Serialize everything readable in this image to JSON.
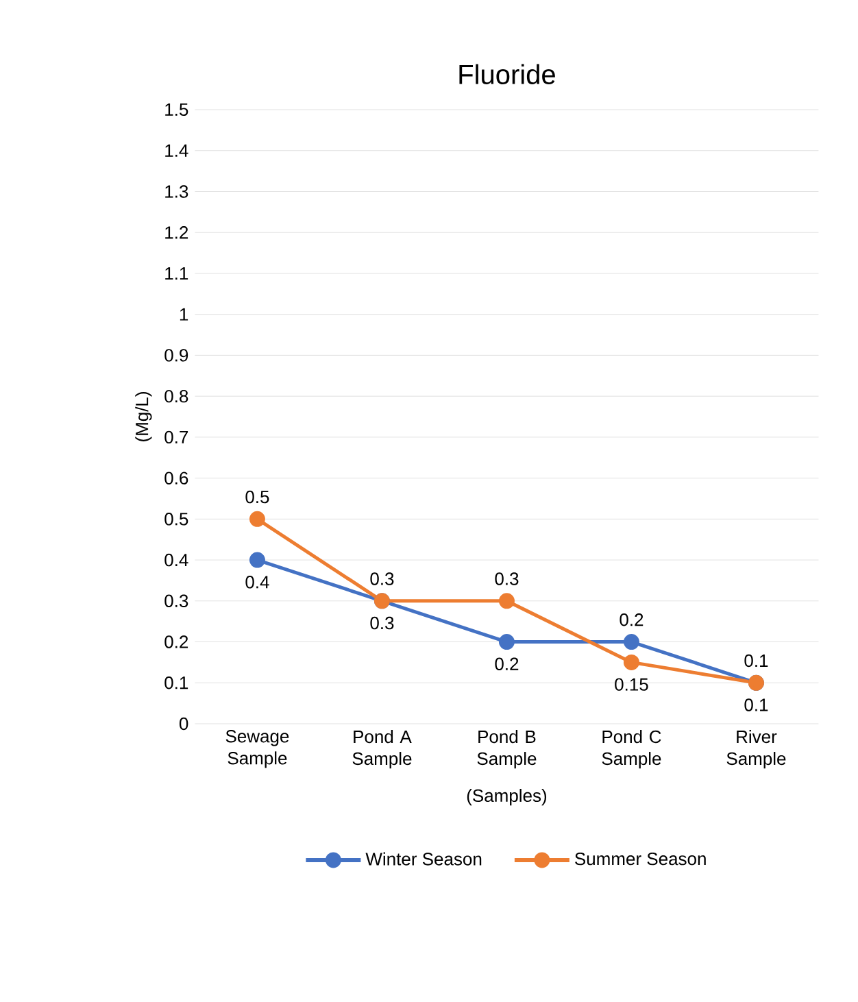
{
  "chart_data": {
    "type": "line",
    "title": "Fluoride",
    "xlabel": "(Samples)",
    "ylabel": "(Mg/L)",
    "categories": [
      "Sewage Sample",
      "Pond A Sample",
      "Pond B Sample",
      "Pond C Sample",
      "River Sample"
    ],
    "series": [
      {
        "name": "Winter Season",
        "color": "#4472c4",
        "values": [
          0.4,
          0.3,
          0.2,
          0.2,
          0.1
        ]
      },
      {
        "name": "Summer Season",
        "color": "#ed7d31",
        "values": [
          0.5,
          0.3,
          0.3,
          0.15,
          0.1
        ]
      }
    ],
    "ylim": [
      0,
      1.5
    ],
    "yticks": [
      0,
      0.1,
      0.2,
      0.3,
      0.4,
      0.5,
      0.6,
      0.7,
      0.8,
      0.9,
      1,
      1.1,
      1.2,
      1.3,
      1.4,
      1.5
    ],
    "grid": "y",
    "legend": "bottom",
    "marker": "circle",
    "line_style": "solid",
    "data_labels": true
  }
}
